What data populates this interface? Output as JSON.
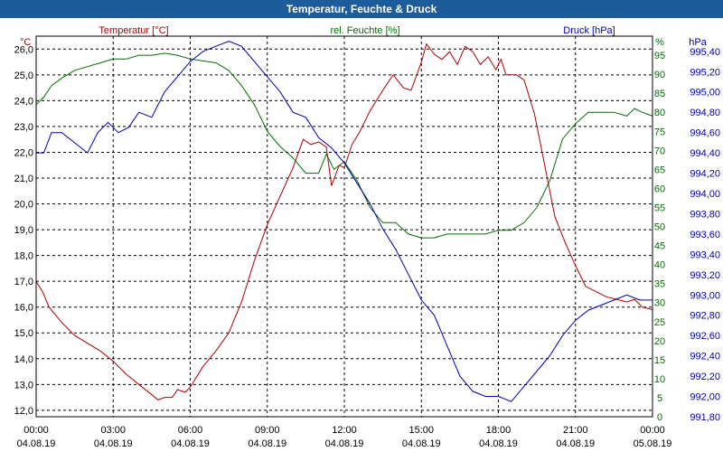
{
  "window": {
    "title": "Temperatur, Feuchte & Druck"
  },
  "colors": {
    "temperature": "#b00000",
    "humidity": "#007000",
    "pressure": "#0000b0",
    "titlebar": "#1d5c9a",
    "grid": "#000000"
  },
  "chart_data": {
    "type": "line",
    "title": "Temperatur, Feuchte & Druck",
    "x_ticks": [
      {
        "time": "00:00",
        "date": "04.08.19",
        "hour": 0
      },
      {
        "time": "03:00",
        "date": "04.08.19",
        "hour": 3
      },
      {
        "time": "06:00",
        "date": "04.08.19",
        "hour": 6
      },
      {
        "time": "09:00",
        "date": "04.08.19",
        "hour": 9
      },
      {
        "time": "12:00",
        "date": "04.08.19",
        "hour": 12
      },
      {
        "time": "15:00",
        "date": "04.08.19",
        "hour": 15
      },
      {
        "time": "18:00",
        "date": "04.08.19",
        "hour": 18
      },
      {
        "time": "21:00",
        "date": "04.08.19",
        "hour": 21
      },
      {
        "time": "00:00",
        "date": "05.08.19",
        "hour": 24
      }
    ],
    "xlim": [
      0,
      24
    ],
    "axes": {
      "temperature": {
        "label": "Temperatur [°C]",
        "unit": "°C",
        "ylim": [
          11.75,
          26.5
        ],
        "ticks": [
          "26,0",
          "25,0",
          "24,0",
          "23,0",
          "22,0",
          "21,0",
          "20,0",
          "19,0",
          "18,0",
          "17,0",
          "16,0",
          "15,0",
          "14,0",
          "13,0",
          "12,0"
        ],
        "tick_values": [
          26,
          25,
          24,
          23,
          22,
          21,
          20,
          19,
          18,
          17,
          16,
          15,
          14,
          13,
          12
        ]
      },
      "humidity": {
        "label": "rel. Feuchte [%]",
        "unit": "%",
        "ylim": [
          0,
          100
        ],
        "ticks": [
          "95",
          "90",
          "85",
          "80",
          "75",
          "70",
          "65",
          "60",
          "55",
          "50",
          "45",
          "40",
          "35",
          "30",
          "25",
          "20",
          "15",
          "10",
          "5",
          "0"
        ],
        "tick_values": [
          95,
          90,
          85,
          80,
          75,
          70,
          65,
          60,
          55,
          50,
          45,
          40,
          35,
          30,
          25,
          20,
          15,
          10,
          5,
          0
        ]
      },
      "pressure": {
        "label": "Druck [hPa]",
        "unit": "hPa",
        "ylim": [
          991.8,
          995.55
        ],
        "ticks": [
          "995,40",
          "995,20",
          "995,00",
          "994,80",
          "994,60",
          "994,40",
          "994,20",
          "994,00",
          "993,80",
          "993,60",
          "993,40",
          "993,20",
          "993,00",
          "992,80",
          "992,60",
          "992,40",
          "992,20",
          "992,00",
          "991,80"
        ],
        "tick_values": [
          995.4,
          995.2,
          995.0,
          994.8,
          994.6,
          994.4,
          994.2,
          994.0,
          993.8,
          993.6,
          993.4,
          993.2,
          993.0,
          992.8,
          992.6,
          992.4,
          992.2,
          992.0,
          991.8
        ]
      }
    },
    "series": [
      {
        "name": "Temperatur [°C]",
        "axis": "temperature",
        "color": "#b00000",
        "points": [
          [
            0,
            17.0
          ],
          [
            0.25,
            16.6
          ],
          [
            0.5,
            16.0
          ],
          [
            1,
            15.4
          ],
          [
            1.5,
            14.9
          ],
          [
            2,
            14.6
          ],
          [
            2.5,
            14.3
          ],
          [
            3,
            13.9
          ],
          [
            3.5,
            13.4
          ],
          [
            4,
            13.0
          ],
          [
            4.5,
            12.6
          ],
          [
            4.75,
            12.4
          ],
          [
            5,
            12.5
          ],
          [
            5.3,
            12.5
          ],
          [
            5.5,
            12.8
          ],
          [
            5.8,
            12.7
          ],
          [
            6,
            12.9
          ],
          [
            6.5,
            13.7
          ],
          [
            7,
            14.3
          ],
          [
            7.5,
            15.0
          ],
          [
            8,
            16.2
          ],
          [
            8.5,
            17.8
          ],
          [
            9,
            19.2
          ],
          [
            9.5,
            20.3
          ],
          [
            10,
            21.4
          ],
          [
            10.4,
            22.5
          ],
          [
            10.7,
            22.3
          ],
          [
            11,
            22.4
          ],
          [
            11.3,
            22.2
          ],
          [
            11.5,
            20.7
          ],
          [
            11.8,
            21.5
          ],
          [
            12,
            21.4
          ],
          [
            12.3,
            22.3
          ],
          [
            12.6,
            22.8
          ],
          [
            13,
            23.6
          ],
          [
            13.5,
            24.4
          ],
          [
            13.9,
            25.0
          ],
          [
            14.3,
            24.5
          ],
          [
            14.6,
            24.4
          ],
          [
            15,
            25.5
          ],
          [
            15.2,
            26.2
          ],
          [
            15.5,
            25.8
          ],
          [
            15.8,
            25.6
          ],
          [
            16.1,
            25.9
          ],
          [
            16.4,
            25.4
          ],
          [
            16.7,
            26.1
          ],
          [
            17,
            25.9
          ],
          [
            17.3,
            25.4
          ],
          [
            17.6,
            25.7
          ],
          [
            17.9,
            25.2
          ],
          [
            18.1,
            25.6
          ],
          [
            18.3,
            25.0
          ],
          [
            18.7,
            25.0
          ],
          [
            19,
            24.8
          ],
          [
            19.4,
            23.5
          ],
          [
            19.8,
            21.5
          ],
          [
            20.2,
            19.5
          ],
          [
            20.6,
            18.5
          ],
          [
            21,
            17.6
          ],
          [
            21.4,
            16.8
          ],
          [
            21.8,
            16.6
          ],
          [
            22.2,
            16.4
          ],
          [
            22.6,
            16.3
          ],
          [
            23,
            16.2
          ],
          [
            23.3,
            16.3
          ],
          [
            23.6,
            16.0
          ],
          [
            24,
            15.9
          ]
        ]
      },
      {
        "name": "rel. Feuchte [%]",
        "axis": "humidity",
        "color": "#007000",
        "points": [
          [
            0,
            82
          ],
          [
            0.3,
            84
          ],
          [
            0.6,
            87
          ],
          [
            1,
            89
          ],
          [
            1.5,
            91
          ],
          [
            2,
            92
          ],
          [
            2.5,
            93
          ],
          [
            3,
            94
          ],
          [
            3.5,
            94
          ],
          [
            4,
            95
          ],
          [
            4.5,
            95
          ],
          [
            5,
            95.5
          ],
          [
            5.5,
            95
          ],
          [
            6,
            94
          ],
          [
            6.5,
            93.5
          ],
          [
            7,
            93
          ],
          [
            7.5,
            91
          ],
          [
            8,
            87
          ],
          [
            8.5,
            82
          ],
          [
            9,
            75
          ],
          [
            9.5,
            71
          ],
          [
            10,
            68
          ],
          [
            10.5,
            64
          ],
          [
            11,
            64
          ],
          [
            11.3,
            69
          ],
          [
            11.6,
            65
          ],
          [
            12,
            67
          ],
          [
            12.5,
            62
          ],
          [
            13,
            55
          ],
          [
            13.5,
            51
          ],
          [
            14,
            51
          ],
          [
            14.5,
            48
          ],
          [
            15,
            47
          ],
          [
            15.5,
            47
          ],
          [
            16,
            48
          ],
          [
            16.5,
            48
          ],
          [
            17,
            48
          ],
          [
            17.5,
            48
          ],
          [
            18,
            49
          ],
          [
            18.5,
            49
          ],
          [
            19,
            51
          ],
          [
            19.5,
            55
          ],
          [
            20,
            62
          ],
          [
            20.5,
            73
          ],
          [
            21,
            77
          ],
          [
            21.5,
            80
          ],
          [
            22,
            80
          ],
          [
            22.5,
            80
          ],
          [
            23,
            79
          ],
          [
            23.3,
            81
          ],
          [
            23.6,
            80
          ],
          [
            24,
            79
          ]
        ]
      },
      {
        "name": "Druck [hPa]",
        "axis": "pressure",
        "color": "#0000b0",
        "points": [
          [
            0,
            994.4
          ],
          [
            0.3,
            994.4
          ],
          [
            0.6,
            994.6
          ],
          [
            1,
            994.6
          ],
          [
            1.5,
            994.5
          ],
          [
            2,
            994.4
          ],
          [
            2.4,
            994.6
          ],
          [
            2.8,
            994.7
          ],
          [
            3.2,
            994.6
          ],
          [
            3.6,
            994.65
          ],
          [
            4,
            994.8
          ],
          [
            4.5,
            994.75
          ],
          [
            5,
            995.0
          ],
          [
            5.5,
            995.15
          ],
          [
            6,
            995.3
          ],
          [
            6.5,
            995.4
          ],
          [
            7,
            995.45
          ],
          [
            7.5,
            995.5
          ],
          [
            8,
            995.45
          ],
          [
            8.5,
            995.3
          ],
          [
            9,
            995.15
          ],
          [
            9.5,
            995.0
          ],
          [
            10,
            994.8
          ],
          [
            10.5,
            994.75
          ],
          [
            11,
            994.55
          ],
          [
            11.5,
            994.45
          ],
          [
            12,
            994.3
          ],
          [
            12.5,
            994.1
          ],
          [
            13,
            993.9
          ],
          [
            13.5,
            993.65
          ],
          [
            14,
            993.45
          ],
          [
            14.5,
            993.2
          ],
          [
            15,
            992.95
          ],
          [
            15.5,
            992.8
          ],
          [
            16,
            992.5
          ],
          [
            16.5,
            992.2
          ],
          [
            17,
            992.05
          ],
          [
            17.5,
            992.0
          ],
          [
            18,
            992.0
          ],
          [
            18.5,
            991.95
          ],
          [
            19,
            992.1
          ],
          [
            19.5,
            992.25
          ],
          [
            20,
            992.4
          ],
          [
            20.5,
            992.6
          ],
          [
            21,
            992.75
          ],
          [
            21.5,
            992.85
          ],
          [
            22,
            992.9
          ],
          [
            22.5,
            992.95
          ],
          [
            23,
            993.0
          ],
          [
            23.5,
            992.95
          ],
          [
            24,
            992.95
          ]
        ]
      }
    ]
  }
}
